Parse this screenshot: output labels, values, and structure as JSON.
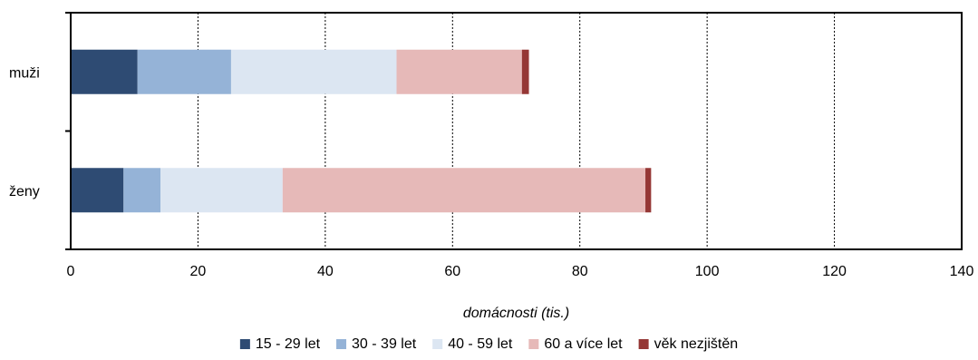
{
  "chart_data": {
    "type": "bar",
    "orientation": "horizontal",
    "stacked": true,
    "categories": [
      "muži",
      "ženy"
    ],
    "series": [
      {
        "name": "15 - 29 let",
        "color": "#2e4b73",
        "values": [
          10.5,
          8.3
        ]
      },
      {
        "name": "30 - 39 let",
        "color": "#95b3d7",
        "values": [
          14.7,
          5.8
        ]
      },
      {
        "name": "40 - 59 let",
        "color": "#dce6f2",
        "values": [
          26.0,
          19.2
        ]
      },
      {
        "name": "60 a více let",
        "color": "#e6b9b8",
        "values": [
          19.7,
          57.0
        ]
      },
      {
        "name": "věk nezjištěn",
        "color": "#953735",
        "values": [
          1.1,
          0.9
        ]
      }
    ],
    "xlabel": "domácnosti (tis.)",
    "ylabel": "",
    "xlim": [
      0,
      140
    ],
    "xticks": [
      0,
      20,
      40,
      60,
      80,
      100,
      120,
      140
    ],
    "grid": "vertical dotted",
    "legend": "bottom"
  }
}
